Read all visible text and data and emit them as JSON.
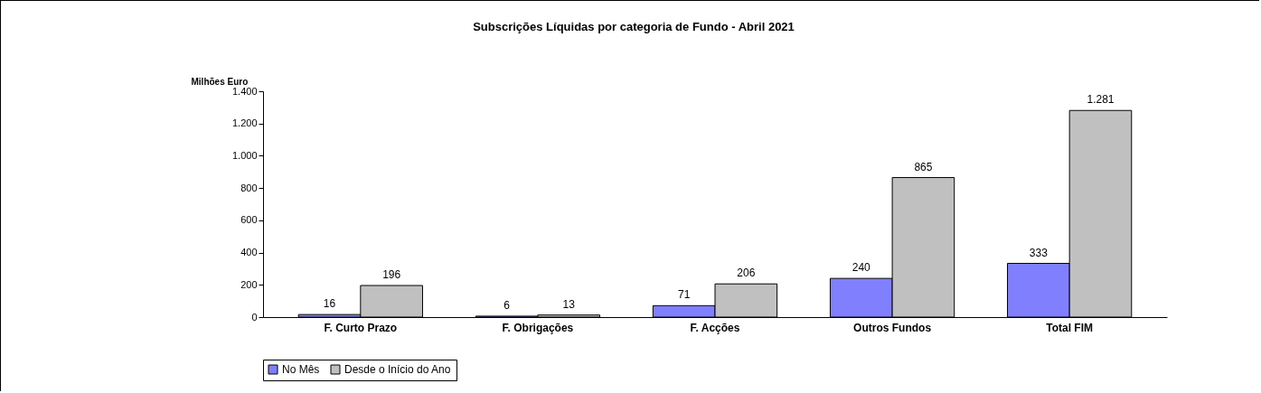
{
  "chart_data": {
    "type": "bar",
    "title": "Subscrições Líquidas por categoria de Fundo - Abril 2021",
    "ylabel": "Milhões Euro",
    "categories": [
      "F. Curto Prazo",
      "F. Obrigações",
      "F. Acções",
      "Outros Fundos",
      "Total FIM"
    ],
    "series": [
      {
        "name": "No Mês",
        "color": "#8080ff",
        "values": [
          16,
          6,
          71,
          240,
          333
        ],
        "value_labels": [
          "16",
          "6",
          "71",
          "240",
          "333"
        ]
      },
      {
        "name": "Desde o Início do Ano",
        "color": "#c0c0c0",
        "values": [
          196,
          13,
          206,
          865,
          1281
        ],
        "value_labels": [
          "196",
          "13",
          "206",
          "865",
          "1.281"
        ]
      }
    ],
    "ylim": [
      0,
      1400
    ],
    "yticks": [
      {
        "value": 0,
        "label": "0"
      },
      {
        "value": 200,
        "label": "200"
      },
      {
        "value": 400,
        "label": "400"
      },
      {
        "value": 600,
        "label": "600"
      },
      {
        "value": 800,
        "label": "800"
      },
      {
        "value": 1000,
        "label": "1.000"
      },
      {
        "value": 1200,
        "label": "1.200"
      },
      {
        "value": 1400,
        "label": "1.400"
      }
    ],
    "grid": false,
    "legend": "bottom"
  }
}
